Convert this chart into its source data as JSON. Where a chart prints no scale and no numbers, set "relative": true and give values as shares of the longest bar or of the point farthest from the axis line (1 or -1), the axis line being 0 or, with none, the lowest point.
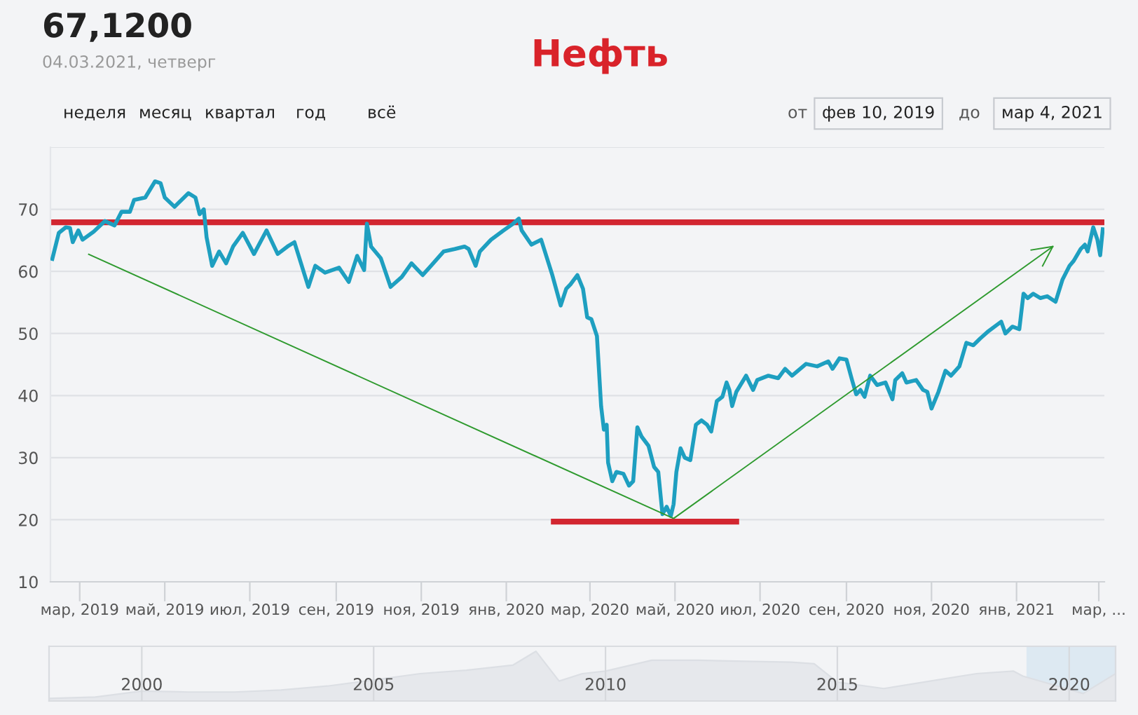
{
  "chart_data": [
    {
      "type": "line",
      "title": "Нефть",
      "annotations": [
        "67,1200",
        "04.03.2021, четверг",
        "неделя",
        "месяц",
        "квартал",
        "год",
        "всё",
        "от",
        "фев 10, 2019",
        "до",
        "мар 4, 2021"
      ],
      "xlim": [
        "2019-02-08",
        "2021-03-05"
      ],
      "xticks": [
        {
          "value": "2019-03-01",
          "label": "мар, 2019"
        },
        {
          "value": "2019-05-01",
          "label": "май, 2019"
        },
        {
          "value": "2019-07-01",
          "label": "июл, 2019"
        },
        {
          "value": "2019-09-01",
          "label": "сен, 2019"
        },
        {
          "value": "2019-11-01",
          "label": "ноя, 2019"
        },
        {
          "value": "2020-01-01",
          "label": "янв, 2020"
        },
        {
          "value": "2020-03-01",
          "label": "мар, 2020"
        },
        {
          "value": "2020-05-01",
          "label": "май, 2020"
        },
        {
          "value": "2020-07-01",
          "label": "июл, 2020"
        },
        {
          "value": "2020-09-01",
          "label": "сен, 2020"
        },
        {
          "value": "2020-11-01",
          "label": "ноя, 2020"
        },
        {
          "value": "2021-01-01",
          "label": "янв, 2021"
        },
        {
          "value": "2021-03-01",
          "label": "мар, ..."
        }
      ],
      "ylim": [
        10,
        80
      ],
      "yticks": [
        10,
        20,
        30,
        40,
        50,
        60,
        70,
        {
          "value": 80,
          "label": null
        }
      ],
      "grid": "y",
      "legend": false,
      "ref_lines": [
        {
          "axis": "y",
          "value": 67.9,
          "color": "#d22630"
        }
      ],
      "series": [
        {
          "color": "#1e9fc0",
          "x": [
            "2019-02-09",
            "2019-02-14",
            "2019-02-19",
            "2019-02-22",
            "2019-02-24",
            "2019-02-28",
            "2019-03-03",
            "2019-03-11",
            "2019-03-19",
            "2019-03-26",
            "2019-03-31",
            "2019-04-06",
            "2019-04-09",
            "2019-04-17",
            "2019-04-24",
            "2019-04-28",
            "2019-05-01",
            "2019-05-08",
            "2019-05-13",
            "2019-05-18",
            "2019-05-23",
            "2019-05-26",
            "2019-05-29",
            "2019-05-31",
            "2019-06-04",
            "2019-06-09",
            "2019-06-14",
            "2019-06-19",
            "2019-06-26",
            "2019-07-04",
            "2019-07-13",
            "2019-07-21",
            "2019-07-28",
            "2019-08-02",
            "2019-08-12",
            "2019-08-17",
            "2019-08-24",
            "2019-09-03",
            "2019-09-10",
            "2019-09-16",
            "2019-09-21",
            "2019-09-23",
            "2019-09-26",
            "2019-10-03",
            "2019-10-10",
            "2019-10-18",
            "2019-10-25",
            "2019-11-02",
            "2019-11-08",
            "2019-11-17",
            "2019-11-25",
            "2019-12-02",
            "2019-12-05",
            "2019-12-10",
            "2019-12-13",
            "2019-12-21",
            "2019-12-30",
            "2020-01-06",
            "2020-01-10",
            "2020-01-12",
            "2020-01-19",
            "2020-01-26",
            "2020-02-03",
            "2020-02-09",
            "2020-02-13",
            "2020-02-16",
            "2020-02-21",
            "2020-02-25",
            "2020-02-28",
            "2020-03-02",
            "2020-03-06",
            "2020-03-09",
            "2020-03-11",
            "2020-03-13",
            "2020-03-14",
            "2020-03-17",
            "2020-03-20",
            "2020-03-25",
            "2020-03-29",
            "2020-04-01",
            "2020-04-04",
            "2020-04-07",
            "2020-04-12",
            "2020-04-16",
            "2020-04-19",
            "2020-04-22",
            "2020-04-25",
            "2020-04-28",
            "2020-04-30",
            "2020-05-02",
            "2020-05-05",
            "2020-05-08",
            "2020-05-12",
            "2020-05-16",
            "2020-05-20",
            "2020-05-24",
            "2020-05-27",
            "2020-05-31",
            "2020-06-04",
            "2020-06-07",
            "2020-06-09",
            "2020-06-11",
            "2020-06-14",
            "2020-06-21",
            "2020-06-26",
            "2020-06-29",
            "2020-07-07",
            "2020-07-14",
            "2020-07-19",
            "2020-07-24",
            "2020-08-03",
            "2020-08-11",
            "2020-08-19",
            "2020-08-22",
            "2020-08-27",
            "2020-09-01",
            "2020-09-05",
            "2020-09-08",
            "2020-09-11",
            "2020-09-14",
            "2020-09-18",
            "2020-09-23",
            "2020-09-29",
            "2020-10-04",
            "2020-10-06",
            "2020-10-11",
            "2020-10-14",
            "2020-10-21",
            "2020-10-26",
            "2020-10-29",
            "2020-11-01",
            "2020-11-06",
            "2020-11-11",
            "2020-11-15",
            "2020-11-21",
            "2020-11-26",
            "2020-12-01",
            "2020-12-06",
            "2020-12-12",
            "2020-12-21",
            "2020-12-24",
            "2020-12-29",
            "2021-01-03",
            "2021-01-06",
            "2021-01-09",
            "2021-01-13",
            "2021-01-18",
            "2021-01-23",
            "2021-01-29",
            "2021-02-03",
            "2021-02-08",
            "2021-02-11",
            "2021-02-16",
            "2021-02-19",
            "2021-02-21",
            "2021-02-25",
            "2021-02-28",
            "2021-03-02",
            "2021-03-04"
          ],
          "values": [
            61.7,
            66.2,
            67.1,
            67.0,
            64.7,
            66.6,
            65.1,
            66.4,
            68.1,
            67.4,
            69.6,
            69.6,
            71.5,
            71.9,
            74.5,
            74.2,
            71.9,
            70.4,
            71.5,
            72.6,
            71.9,
            69.2,
            70.0,
            65.5,
            60.9,
            63.2,
            61.3,
            64.0,
            66.2,
            62.8,
            66.6,
            62.8,
            64.0,
            64.7,
            57.5,
            60.9,
            59.8,
            60.6,
            58.3,
            62.5,
            60.2,
            67.7,
            64.0,
            62.1,
            57.5,
            59.1,
            61.3,
            59.4,
            60.9,
            63.2,
            63.6,
            64.0,
            63.6,
            60.9,
            63.2,
            65.1,
            66.6,
            67.7,
            68.5,
            66.6,
            64.3,
            65.1,
            59.4,
            54.5,
            57.2,
            57.9,
            59.4,
            57.2,
            52.6,
            52.3,
            49.6,
            38.3,
            34.5,
            35.3,
            29.2,
            26.2,
            27.7,
            27.4,
            25.5,
            26.2,
            34.9,
            33.4,
            31.9,
            28.5,
            27.7,
            20.9,
            22.1,
            20.6,
            22.5,
            27.7,
            31.5,
            30.0,
            29.6,
            35.3,
            36.0,
            35.3,
            34.2,
            39.1,
            39.8,
            42.1,
            40.9,
            38.3,
            40.6,
            43.2,
            40.9,
            42.5,
            43.2,
            42.8,
            44.3,
            43.2,
            45.1,
            44.7,
            45.5,
            44.3,
            46.0,
            45.8,
            42.5,
            40.2,
            40.9,
            39.8,
            43.2,
            41.7,
            42.1,
            39.4,
            42.5,
            43.6,
            42.1,
            42.5,
            40.9,
            40.6,
            37.9,
            40.6,
            44.0,
            43.2,
            44.7,
            48.5,
            48.1,
            49.2,
            50.4,
            51.9,
            50.0,
            51.1,
            50.7,
            56.4,
            55.7,
            56.4,
            55.7,
            56.0,
            55.1,
            58.7,
            60.9,
            61.7,
            63.6,
            64.3,
            63.2,
            67.1,
            65.1,
            62.6,
            67.1
          ]
        },
        {
          "color": "#d22630",
          "x": [
            "2020-02-02",
            "2020-06-16"
          ],
          "values": [
            19.7,
            19.7
          ]
        },
        {
          "color": "#2e9a2e",
          "x": [
            "2019-03-07",
            "2020-04-30"
          ],
          "values": [
            62.8,
            20.2
          ]
        },
        {
          "color": "#2e9a2e",
          "x": [
            "2020-04-30",
            "2021-01-27"
          ],
          "values": [
            20.2,
            64.0
          ]
        }
      ]
    },
    {
      "type": "area",
      "relative": true,
      "color": "#e6e8ec",
      "grid": "x",
      "x": [
        1998,
        1999,
        2000,
        2001,
        2002,
        2003,
        2004,
        2005,
        2006,
        2007,
        2008,
        2008.5,
        2009,
        2009.5,
        2010,
        2011,
        2012,
        2013,
        2014,
        2014.5,
        2015,
        2016,
        2017,
        2018,
        2018.8,
        2019,
        2020.3,
        2021
      ],
      "values": [
        0.05,
        0.08,
        0.2,
        0.18,
        0.18,
        0.22,
        0.3,
        0.42,
        0.55,
        0.62,
        0.72,
        1.0,
        0.4,
        0.55,
        0.6,
        0.82,
        0.82,
        0.8,
        0.78,
        0.75,
        0.38,
        0.25,
        0.4,
        0.55,
        0.6,
        0.5,
        0.15,
        0.55
      ],
      "xlim": [
        1998,
        2021
      ],
      "xticks": [
        2000,
        2005,
        2010,
        2015,
        2020
      ],
      "bands": [
        {
          "axis": "x",
          "from": 2019.1,
          "to": 2021.0,
          "color": "#dde9f2"
        }
      ]
    }
  ]
}
